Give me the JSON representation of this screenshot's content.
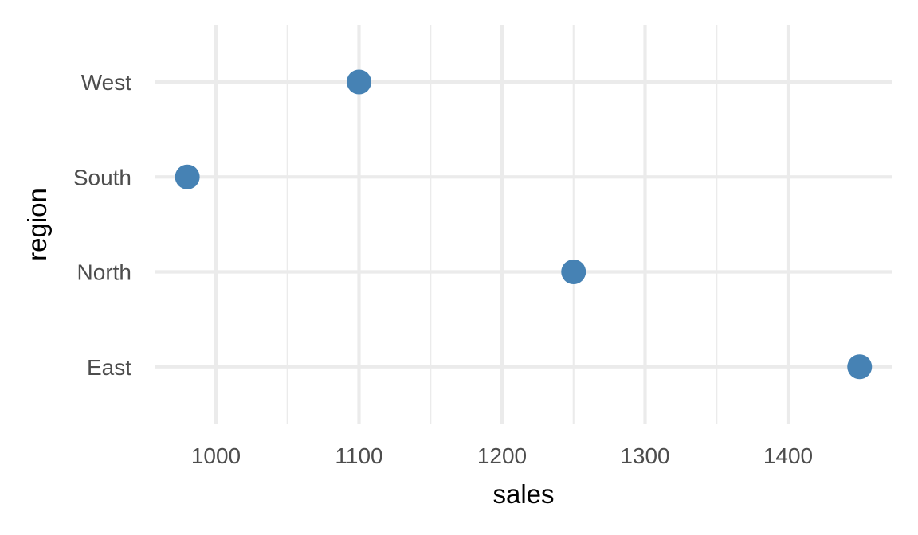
{
  "chart_data": {
    "type": "scatter",
    "title": "",
    "xlabel": "sales",
    "ylabel": "region",
    "categories": [
      "East",
      "North",
      "South",
      "West"
    ],
    "series": [
      {
        "points": [
          {
            "category": "East",
            "x": 1450
          },
          {
            "category": "North",
            "x": 1250
          },
          {
            "category": "South",
            "x": 980
          },
          {
            "category": "West",
            "x": 1100
          }
        ]
      }
    ],
    "xlim": [
      958,
      1473
    ],
    "x_major_ticks": [
      1000,
      1100,
      1200,
      1300,
      1400
    ],
    "x_tick_labels": [
      "1000",
      "1100",
      "1200",
      "1300",
      "1400"
    ],
    "x_minor_ticks": [
      1050,
      1150,
      1250,
      1350
    ],
    "grid": true,
    "legend": "none",
    "colors": {
      "point": "#4682b4",
      "grid": "#ebebeb",
      "background": "#ffffff"
    }
  }
}
